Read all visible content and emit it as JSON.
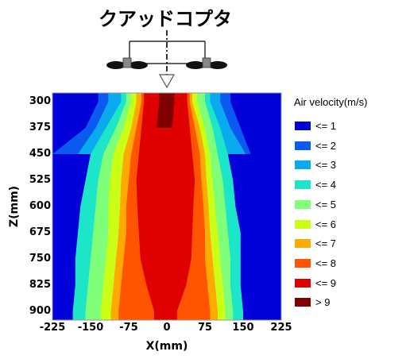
{
  "title": "クアッドコプタ",
  "legend": {
    "title": "Air velocity(m/s)",
    "items": [
      {
        "label": "<= 1",
        "color": "#0000d8"
      },
      {
        "label": "<= 2",
        "color": "#0a5af0"
      },
      {
        "label": "<= 3",
        "color": "#0aaaee"
      },
      {
        "label": "<= 4",
        "color": "#1de6c8"
      },
      {
        "label": "<= 5",
        "color": "#80ff78"
      },
      {
        "label": "<= 6",
        "color": "#ccff16"
      },
      {
        "label": "<= 7",
        "color": "#ffaa00"
      },
      {
        "label": "<= 8",
        "color": "#ff5500"
      },
      {
        "label": "<= 9",
        "color": "#e00000"
      },
      {
        "label": "> 9",
        "color": "#800000"
      }
    ]
  },
  "chart_data": {
    "type": "heatmap",
    "xlabel": "X(mm)",
    "ylabel": "Z(mm)",
    "x_ticks": [
      "-225",
      "-150",
      "-75",
      "0",
      "75",
      "150",
      "225"
    ],
    "y_ticks": [
      "300",
      "375",
      "450",
      "525",
      "600",
      "675",
      "750",
      "825",
      "900"
    ],
    "xlim": [
      -225,
      225
    ],
    "ylim": [
      925,
      275
    ],
    "z": [
      300,
      375,
      450,
      525,
      600,
      675,
      750,
      825,
      900
    ],
    "contour_boundaries_x_mm": {
      "le_1": [
        [
          -160,
          145
        ],
        [
          -190,
          165
        ],
        [
          -225,
          185
        ]
      ],
      "le_2": [
        [
          -135,
          125
        ],
        [
          -160,
          145
        ],
        [
          -225,
          165
        ]
      ],
      "le_3": [
        [
          -115,
          105
        ],
        [
          -140,
          125
        ],
        [
          -175,
          155
        ]
      ],
      "le_4": [
        [
          -90,
          85
        ],
        [
          -120,
          105
        ],
        [
          -150,
          120
        ],
        [
          -160,
          130
        ],
        [
          -170,
          135
        ],
        [
          -175,
          145
        ],
        [
          -180,
          145
        ],
        [
          -180,
          145
        ],
        [
          -185,
          150
        ]
      ],
      "le_5": [
        [
          -80,
          75
        ],
        [
          -100,
          90
        ],
        [
          -125,
          100
        ],
        [
          -135,
          110
        ],
        [
          -140,
          115
        ],
        [
          -145,
          120
        ],
        [
          -150,
          125
        ],
        [
          -155,
          125
        ],
        [
          -160,
          130
        ]
      ],
      "le_6": [
        [
          -70,
          60
        ],
        [
          -85,
          75
        ],
        [
          -105,
          85
        ],
        [
          -112,
          90
        ],
        [
          -115,
          95
        ],
        [
          -115,
          100
        ],
        [
          -120,
          105
        ],
        [
          -125,
          110
        ],
        [
          -130,
          115
        ]
      ],
      "le_7": [
        [
          -60,
          50
        ],
        [
          -70,
          65
        ],
        [
          -85,
          75
        ],
        [
          -90,
          78
        ],
        [
          -92,
          82
        ],
        [
          -95,
          85
        ],
        [
          -100,
          90
        ],
        [
          -105,
          95
        ],
        [
          -110,
          100
        ]
      ],
      "le_8": [
        [
          -50,
          45
        ],
        [
          -60,
          55
        ],
        [
          -70,
          65
        ],
        [
          -75,
          68
        ],
        [
          -80,
          72
        ],
        [
          -80,
          75
        ],
        [
          -85,
          75
        ],
        [
          -90,
          80
        ],
        [
          -95,
          85
        ]
      ],
      "le_9": [
        [
          -45,
          40
        ],
        [
          -50,
          45
        ],
        [
          -55,
          50
        ],
        [
          -60,
          55
        ],
        [
          -58,
          52
        ],
        [
          -55,
          50
        ],
        [
          -52,
          48
        ],
        [
          -40,
          38
        ],
        [
          -25,
          20
        ]
      ],
      "gt_9": [
        [
          -15,
          15
        ],
        [
          -20,
          10
        ]
      ]
    }
  }
}
